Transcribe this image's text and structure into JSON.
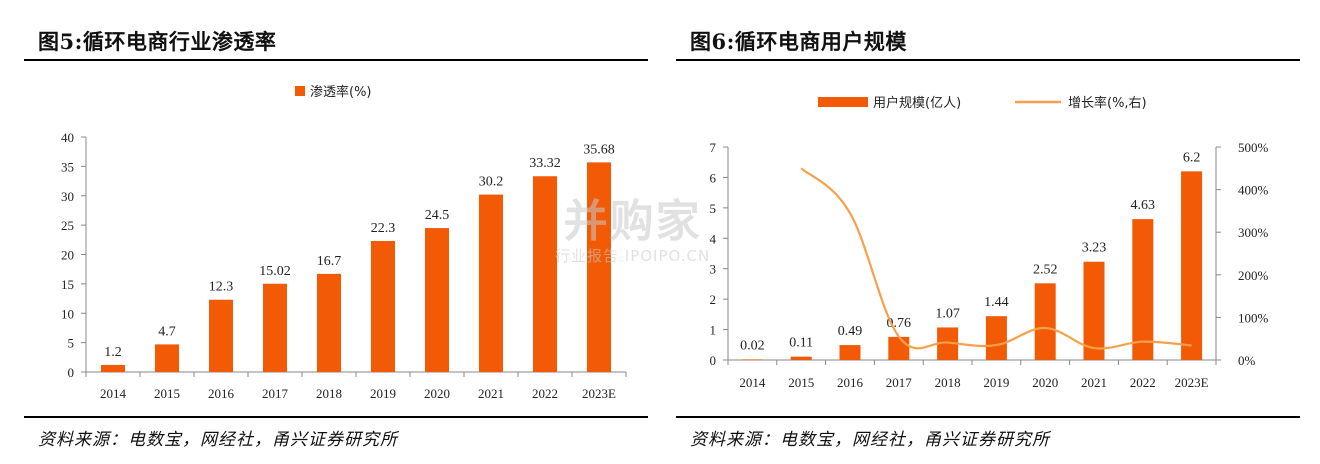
{
  "colors": {
    "bar": "#F25A06",
    "line": "#F7A04C",
    "axis": "#888888",
    "text": "#222222"
  },
  "left": {
    "title": "图5:循环电商行业渗透率",
    "source": "资料来源：电数宝，网经社，甬兴证券研究所"
  },
  "right": {
    "title": "图6:循环电商用户规模",
    "source": "资料来源：电数宝，网经社，甬兴证券研究所"
  },
  "watermark": {
    "main": "并购家",
    "sub": "行业报告 IPOIPO.CN"
  },
  "chart_data": [
    {
      "type": "bar",
      "categories": [
        "2014",
        "2015",
        "2016",
        "2017",
        "2018",
        "2019",
        "2020",
        "2021",
        "2022",
        "2023E"
      ],
      "series": [
        {
          "name": "渗透率(%)",
          "values": [
            1.2,
            4.7,
            12.3,
            15.02,
            16.7,
            22.3,
            24.5,
            30.2,
            33.32,
            35.68
          ]
        }
      ],
      "data_labels": [
        "1.2",
        "4.7",
        "12.3",
        "15.02",
        "16.7",
        "22.3",
        "24.5",
        "30.2",
        "33.32",
        "35.68"
      ],
      "ylim": [
        0,
        40
      ],
      "yticks": [
        "0",
        "5",
        "10",
        "15",
        "20",
        "25",
        "30",
        "35",
        "40"
      ],
      "legend_position": "top-center",
      "grid": false
    },
    {
      "type": "bar",
      "categories": [
        "2014",
        "2015",
        "2016",
        "2017",
        "2018",
        "2019",
        "2020",
        "2021",
        "2022",
        "2023E"
      ],
      "series": [
        {
          "name": "用户规模(亿人)",
          "type": "bar",
          "axis": "left",
          "values": [
            0.02,
            0.11,
            0.49,
            0.76,
            1.07,
            1.44,
            2.52,
            3.23,
            4.63,
            6.2
          ]
        },
        {
          "name": "增长率(%,右)",
          "type": "line",
          "axis": "right",
          "values": [
            null,
            450,
            345,
            55,
            41,
            35,
            75,
            28,
            43,
            34
          ]
        }
      ],
      "data_labels": [
        "0.02",
        "0.11",
        "0.49",
        "0.76",
        "1.07",
        "1.44",
        "2.52",
        "3.23",
        "4.63",
        "6.2"
      ],
      "ylim": [
        0,
        7
      ],
      "yticks": [
        "0",
        "1",
        "2",
        "3",
        "4",
        "5",
        "6",
        "7"
      ],
      "y2lim": [
        0,
        500
      ],
      "y2ticks": [
        "0%",
        "100%",
        "200%",
        "300%",
        "400%",
        "500%"
      ],
      "legend_position": "top-center",
      "grid": false
    }
  ]
}
